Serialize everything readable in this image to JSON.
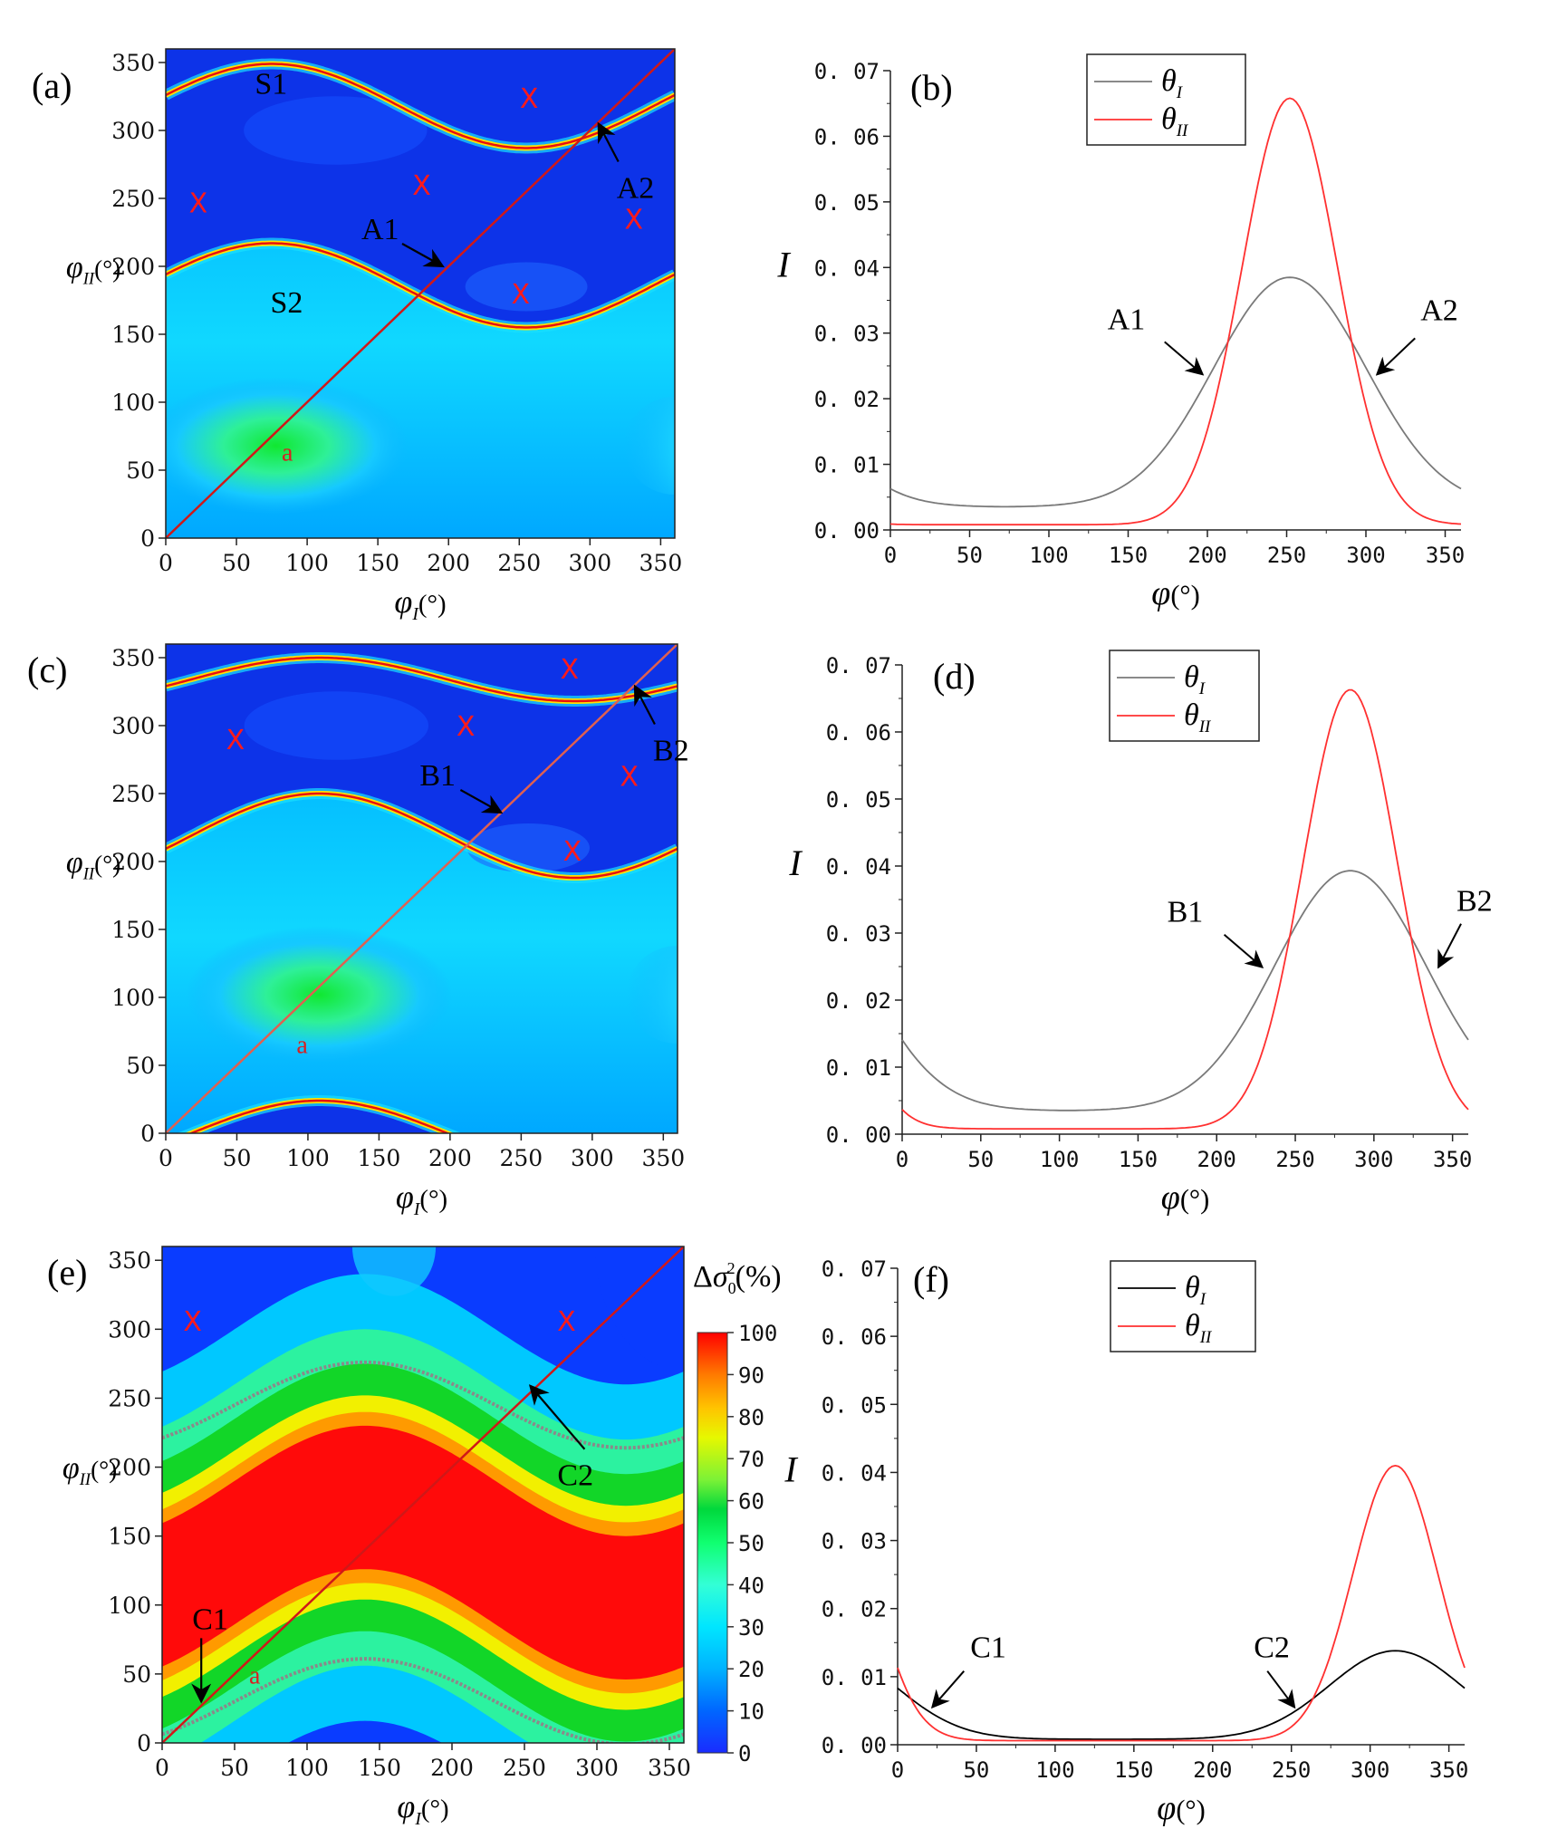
{
  "chart_data": [
    {
      "id": "a",
      "type": "heatmap",
      "panel_label": "(a)",
      "xlabel": "φI(°)",
      "ylabel": "φII(°)",
      "xlim": [
        0,
        360
      ],
      "ylim": [
        0,
        360
      ],
      "ticks": [
        0,
        50,
        100,
        150,
        200,
        250,
        300,
        350
      ],
      "curves": {
        "upper": {
          "center": 318,
          "amp": 31,
          "phase_deg": 75
        },
        "lower": {
          "center": 186,
          "amp": 31,
          "phase_deg": 75
        }
      },
      "diagonal_line": {
        "from": [
          0,
          0
        ],
        "to": [
          360,
          360
        ]
      },
      "labels": [
        {
          "text": "S1",
          "x": 63,
          "y": 327
        },
        {
          "text": "S2",
          "x": 74,
          "y": 166
        }
      ],
      "x_markers": [
        [
          23,
          247
        ],
        [
          181,
          260
        ],
        [
          257,
          324
        ],
        [
          331,
          235
        ],
        [
          251,
          180
        ]
      ],
      "a_label": {
        "text": "a",
        "x": 82,
        "y": 57
      },
      "arrows": [
        {
          "text": "A1",
          "x": 196,
          "y": 200
        },
        {
          "text": "A2",
          "x": 306,
          "y": 305
        }
      ]
    },
    {
      "id": "b",
      "type": "line",
      "panel_label": "(b)",
      "xlabel": "φ(°)",
      "ylabel": "I",
      "xlim": [
        0,
        360
      ],
      "ylim": [
        0,
        0.07
      ],
      "xticks": [
        0,
        50,
        100,
        150,
        200,
        250,
        300,
        350
      ],
      "yticks": [
        "0.00",
        "0.01",
        "0.02",
        "0.03",
        "0.04",
        "0.05",
        "0.06",
        "0.07"
      ],
      "legend": [
        "θI",
        "θII"
      ],
      "series": [
        {
          "name": "θI",
          "color": "#7a7a7a",
          "base": 0.0035,
          "peak": 0.0385,
          "center": 252,
          "width": 48
        },
        {
          "name": "θII",
          "color": "#ff3030",
          "base": 0.0008,
          "peak": 0.0658,
          "center": 252,
          "width": 30
        }
      ],
      "arrows": [
        {
          "text": "A1",
          "x": 197,
          "y": 0.0237
        },
        {
          "text": "A2",
          "x": 307,
          "y": 0.0237
        }
      ]
    },
    {
      "id": "c",
      "type": "heatmap",
      "panel_label": "(c)",
      "xlabel": "φI(°)",
      "ylabel": "φII(°)",
      "xlim": [
        0,
        360
      ],
      "ylim": [
        0,
        360
      ],
      "ticks": [
        0,
        50,
        100,
        150,
        200,
        250,
        300,
        350
      ],
      "curves": {
        "upper": {
          "center": 334,
          "amp": 16,
          "phase_deg": 108
        },
        "lower": {
          "center": 219,
          "amp": 31,
          "phase_deg": 108
        },
        "bottom": {
          "center": 0,
          "amp": 24,
          "phase_deg": 108
        }
      },
      "diagonal_line": {
        "from": [
          0,
          0
        ],
        "to": [
          360,
          360
        ]
      },
      "x_markers": [
        [
          49,
          290
        ],
        [
          211,
          300
        ],
        [
          284,
          342
        ],
        [
          326,
          263
        ],
        [
          286,
          208
        ]
      ],
      "a_label": {
        "text": "a",
        "x": 92,
        "y": 59
      },
      "arrows": [
        {
          "text": "B1",
          "x": 236,
          "y": 236
        },
        {
          "text": "B2",
          "x": 330,
          "y": 329
        }
      ]
    },
    {
      "id": "d",
      "type": "line",
      "panel_label": "(d)",
      "xlabel": "φ(°)",
      "ylabel": "I",
      "xlim": [
        0,
        360
      ],
      "ylim": [
        0,
        0.07
      ],
      "xticks": [
        0,
        50,
        100,
        150,
        200,
        250,
        300,
        350
      ],
      "yticks": [
        "0.00",
        "0.01",
        "0.02",
        "0.03",
        "0.04",
        "0.05",
        "0.06",
        "0.07"
      ],
      "legend": [
        "θI",
        "θII"
      ],
      "series": [
        {
          "name": "θI",
          "color": "#7a7a7a",
          "base": 0.0035,
          "peak": 0.0393,
          "center": 285,
          "width": 48
        },
        {
          "name": "θII",
          "color": "#ff3030",
          "base": 0.0008,
          "peak": 0.0663,
          "center": 285,
          "width": 30
        }
      ],
      "arrows": [
        {
          "text": "B1",
          "x": 229,
          "y": 0.0249
        },
        {
          "text": "B2",
          "x": 341,
          "y": 0.0249
        }
      ]
    },
    {
      "id": "e",
      "type": "heatmap",
      "panel_label": "(e)",
      "xlabel": "φI(°)",
      "ylabel": "φII(°)",
      "xlim": [
        0,
        360
      ],
      "ylim": [
        0,
        360
      ],
      "ticks": [
        0,
        50,
        100,
        150,
        200,
        250,
        300,
        350
      ],
      "red_band": {
        "center": 138,
        "amp": 40,
        "phase_deg": 140,
        "halfwidth": 52
      },
      "curves": {
        "upper": {
          "center": 245,
          "amp": 31,
          "phase_deg": 140
        },
        "lower": {
          "center": 30,
          "amp": 31,
          "phase_deg": 140
        }
      },
      "diagonal_line": {
        "from": [
          0,
          0
        ],
        "to": [
          360,
          360
        ]
      },
      "x_markers": [
        [
          21,
          306
        ],
        [
          279,
          306
        ]
      ],
      "a_label": {
        "text": "a",
        "x": 60,
        "y": 43
      },
      "arrows": [
        {
          "text": "C1",
          "x": 27,
          "y": 30
        },
        {
          "text": "C2",
          "x": 254,
          "y": 259
        }
      ],
      "colorbar": {
        "title": "Δσ0²(%)",
        "ticks": [
          0,
          10,
          20,
          30,
          40,
          50,
          60,
          70,
          80,
          90,
          100
        ],
        "colors": [
          "#1a2cff",
          "#0066ff",
          "#00b2ff",
          "#00e6ff",
          "#33ffd6",
          "#00e04b",
          "#2dd820",
          "#b4ee2e",
          "#ffe000",
          "#ff8c00",
          "#ff0000"
        ]
      }
    },
    {
      "id": "f",
      "type": "line",
      "panel_label": "(f)",
      "xlabel": "φ(°)",
      "ylabel": "I",
      "xlim": [
        0,
        360
      ],
      "ylim": [
        0,
        0.07
      ],
      "xticks": [
        0,
        50,
        100,
        150,
        200,
        250,
        300,
        350
      ],
      "yticks": [
        "0.00",
        "0.01",
        "0.02",
        "0.03",
        "0.04",
        "0.05",
        "0.06",
        "0.07"
      ],
      "legend": [
        "θI",
        "θII"
      ],
      "series": [
        {
          "name": "θI",
          "color": "#000000",
          "base": 0.0008,
          "peak": 0.0138,
          "center": 316,
          "width": 42
        },
        {
          "name": "θII",
          "color": "#ff3030",
          "base": 0.0006,
          "peak": 0.041,
          "center": 316,
          "width": 27
        }
      ],
      "arrows": [
        {
          "text": "C1",
          "x": 22,
          "y": 0.0055
        },
        {
          "text": "C2",
          "x": 252,
          "y": 0.0055
        }
      ]
    }
  ]
}
